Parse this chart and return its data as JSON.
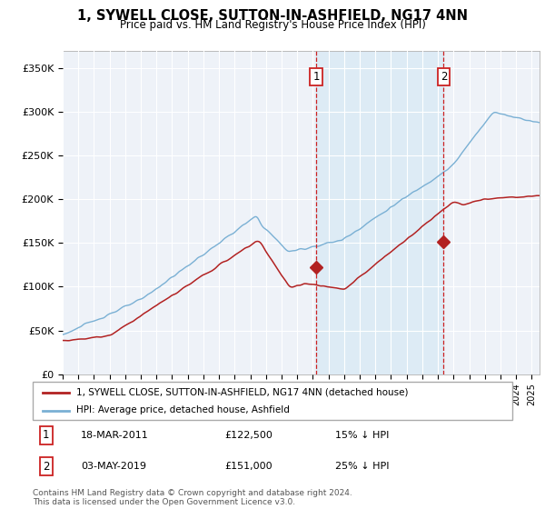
{
  "title": "1, SYWELL CLOSE, SUTTON-IN-ASHFIELD, NG17 4NN",
  "subtitle": "Price paid vs. HM Land Registry's House Price Index (HPI)",
  "ylim": [
    0,
    370000
  ],
  "yticks": [
    0,
    50000,
    100000,
    150000,
    200000,
    250000,
    300000,
    350000
  ],
  "ytick_labels": [
    "£0",
    "£50K",
    "£100K",
    "£150K",
    "£200K",
    "£250K",
    "£300K",
    "£350K"
  ],
  "hpi_color": "#7ab0d4",
  "hpi_fill_color": "#daeaf5",
  "price_color": "#b22222",
  "vline_color": "#cc2222",
  "bg_color": "#eef2f8",
  "sale1_year": 2011.21,
  "sale1_price": 122500,
  "sale2_year": 2019.37,
  "sale2_price": 151000,
  "legend_label1": "1, SYWELL CLOSE, SUTTON-IN-ASHFIELD, NG17 4NN (detached house)",
  "legend_label2": "HPI: Average price, detached house, Ashfield",
  "footer": "Contains HM Land Registry data © Crown copyright and database right 2024.\nThis data is licensed under the Open Government Licence v3.0.",
  "title_fontsize": 10.5,
  "subtitle_fontsize": 8.5
}
